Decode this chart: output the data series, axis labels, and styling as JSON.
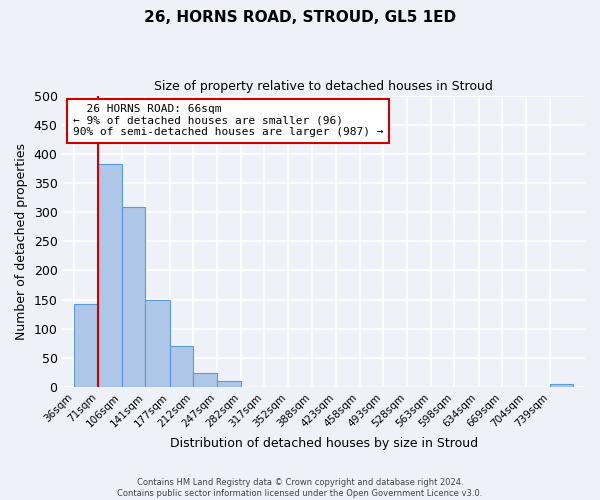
{
  "title": "26, HORNS ROAD, STROUD, GL5 1ED",
  "subtitle": "Size of property relative to detached houses in Stroud",
  "xlabel": "Distribution of detached houses by size in Stroud",
  "ylabel": "Number of detached properties",
  "bin_labels": [
    "36sqm",
    "71sqm",
    "106sqm",
    "141sqm",
    "177sqm",
    "212sqm",
    "247sqm",
    "282sqm",
    "317sqm",
    "352sqm",
    "388sqm",
    "423sqm",
    "458sqm",
    "493sqm",
    "528sqm",
    "563sqm",
    "598sqm",
    "634sqm",
    "669sqm",
    "704sqm",
    "739sqm"
  ],
  "bar_values": [
    143,
    383,
    309,
    150,
    70,
    24,
    10,
    0,
    0,
    0,
    0,
    0,
    0,
    0,
    0,
    0,
    0,
    0,
    0,
    0,
    5
  ],
  "bar_color": "#aec6e8",
  "bar_edge_color": "#5b9bd5",
  "ylim": [
    0,
    500
  ],
  "yticks": [
    0,
    50,
    100,
    150,
    200,
    250,
    300,
    350,
    400,
    450,
    500
  ],
  "property_label": "26 HORNS ROAD: 66sqm",
  "pct_smaller": "9%",
  "n_smaller": 96,
  "pct_larger_semi": "90%",
  "n_larger_semi": 987,
  "footnote1": "Contains HM Land Registry data © Crown copyright and database right 2024.",
  "footnote2": "Contains public sector information licensed under the Open Government Licence v3.0.",
  "background_color": "#eef2f8",
  "grid_color": "#ffffff",
  "annotation_box_color": "#ffffff",
  "annotation_box_edge": "#cc0000",
  "red_line_color": "#cc0000"
}
